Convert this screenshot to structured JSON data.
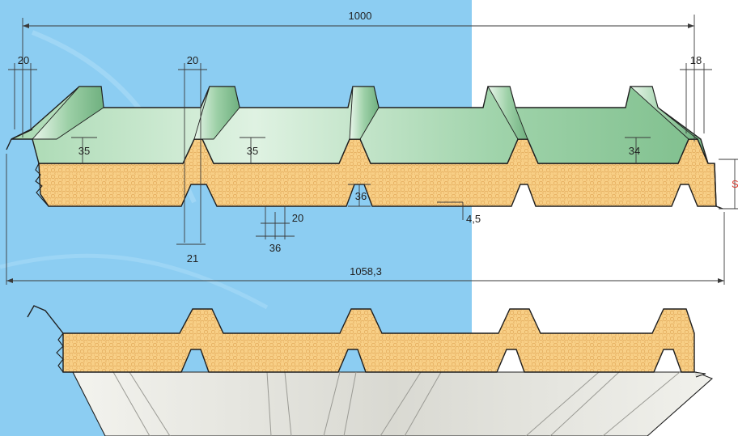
{
  "colors": {
    "background_blue": "#8ccdf2",
    "background_white": "#ffffff",
    "foam_fill": "#f8cf86",
    "foam_cell": "#e4ad5e",
    "top_sheet_light": "#cdebd3",
    "top_sheet_dark": "#86c495",
    "bottom_sheet": "#e9e9e3",
    "outline": "#1f1f1f",
    "thickness_label": "#d83a2f"
  },
  "dimensions": {
    "overall_cover_width": "1000",
    "overall_total_width": "1058,3",
    "left_crest_width": "20",
    "second_crest_width": "20",
    "right_crest_width": "18",
    "rib_height_1": "35",
    "rib_height_2": "35",
    "rib_height_3": "34",
    "bottom_rib_height": "36",
    "bottom_rib_top_width": "20",
    "bottom_rib_base_width": "36",
    "bottom_groove_width": "21",
    "small_groove_depth": "4,5",
    "panel_thickness": "S"
  }
}
